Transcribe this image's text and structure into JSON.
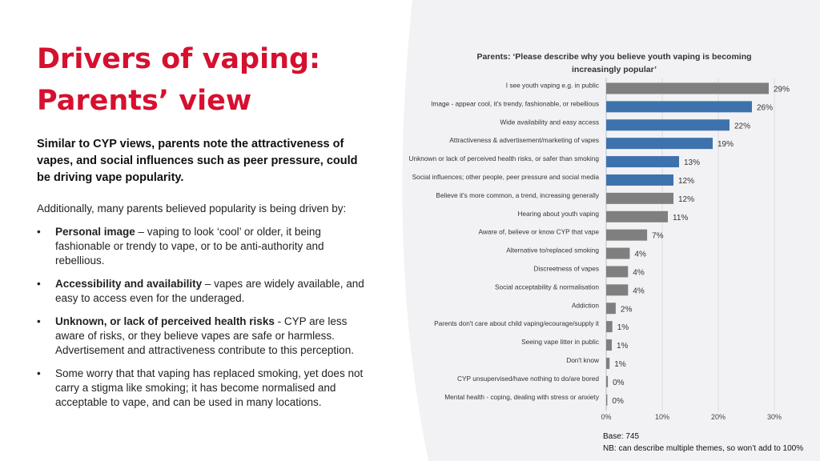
{
  "page": {
    "title_line1": "Drivers of vaping:",
    "title_line2": "Parents’ view",
    "subtitle": "Similar to CYP views, parents note the attractiveness of vapes, and social influences such as peer pressure, could be driving vape popularity.",
    "intro": "Additionally, many parents believed popularity is being driven by:",
    "bullets": [
      {
        "bold": "Personal image",
        "text": " – vaping to look ‘cool’ or older, it being fashionable or trendy to vape, or to be anti-authority and rebellious."
      },
      {
        "bold": "Accessibility and availability",
        "text": " – vapes are widely available, and easy to access even for the underaged."
      },
      {
        "bold": "Unknown, or lack of perceived health risks",
        "text": " -  CYP are less aware of risks, or they believe vapes are safe or harmless. Advertisement and attractiveness contribute to this perception."
      },
      {
        "bold": "",
        "text": "Some worry that that vaping has replaced smoking, yet does not carry a stigma like smoking; it has become normalised and acceptable to vape, and can be used in many locations."
      }
    ],
    "bullet_symbol": "•",
    "footnote_base": "Base: 745",
    "footnote_nb": "NB: can describe multiple themes, so won’t add to 100%"
  },
  "colors": {
    "title_red": "#d6102f",
    "bar_gray": "#7f7f7f",
    "bar_blue": "#3e72ad",
    "panel_bg": "#f2f2f4"
  },
  "chart_data": {
    "type": "bar",
    "orientation": "horizontal",
    "title": "Parents: ‘Please describe why you believe youth vaping is becoming increasingly popular’",
    "categories": [
      "I see youth vaping e.g. in public",
      "Image - appear cool, it's trendy, fashionable, or rebellious",
      "Wide availability and easy access",
      "Attractiveness & advertisement/marketing of vapes",
      "Unknown or lack of perceived health risks, or safer than smoking",
      "Social influences; other people, peer pressure and social media",
      "Believe it's more common, a trend, increasing generally",
      "Hearing about youth vaping",
      "Aware of, believe or know CYP that vape",
      "Alternative to/replaced smoking",
      "Discreetness of vapes",
      "Social acceptability & normalisation",
      "Addiction",
      "Parents don't care about child vaping/ecourage/supply it",
      "Seeing vape litter in public",
      "Don't know",
      "CYP unsupervised/have nothing to do/are bored",
      "Mental health - coping, dealing with stress or anxiety"
    ],
    "values": [
      29,
      26,
      22,
      19,
      13,
      12,
      12,
      11,
      7,
      4,
      4,
      4,
      2,
      1,
      1,
      1,
      0,
      0
    ],
    "value_labels": [
      "29%",
      "26%",
      "22%",
      "19%",
      "13%",
      "12%",
      "12%",
      "11%",
      "7%",
      "4%",
      "4%",
      "4%",
      "2%",
      "1%",
      "1%",
      "1%",
      "0%",
      "0%"
    ],
    "value_precise": [
      29,
      26,
      22,
      19,
      13,
      12,
      12,
      11,
      7.3,
      4.2,
      3.9,
      3.9,
      1.7,
      1.1,
      1.0,
      0.6,
      0.3,
      0.2
    ],
    "highlight": [
      false,
      true,
      true,
      true,
      true,
      true,
      false,
      false,
      false,
      false,
      false,
      false,
      false,
      false,
      false,
      false,
      false,
      false
    ],
    "xlim": [
      0,
      30
    ],
    "xticks": [
      0,
      10,
      20,
      30
    ],
    "xtick_labels": [
      "0%",
      "10%",
      "20%",
      "30%"
    ],
    "grid": true,
    "legend": "none"
  }
}
